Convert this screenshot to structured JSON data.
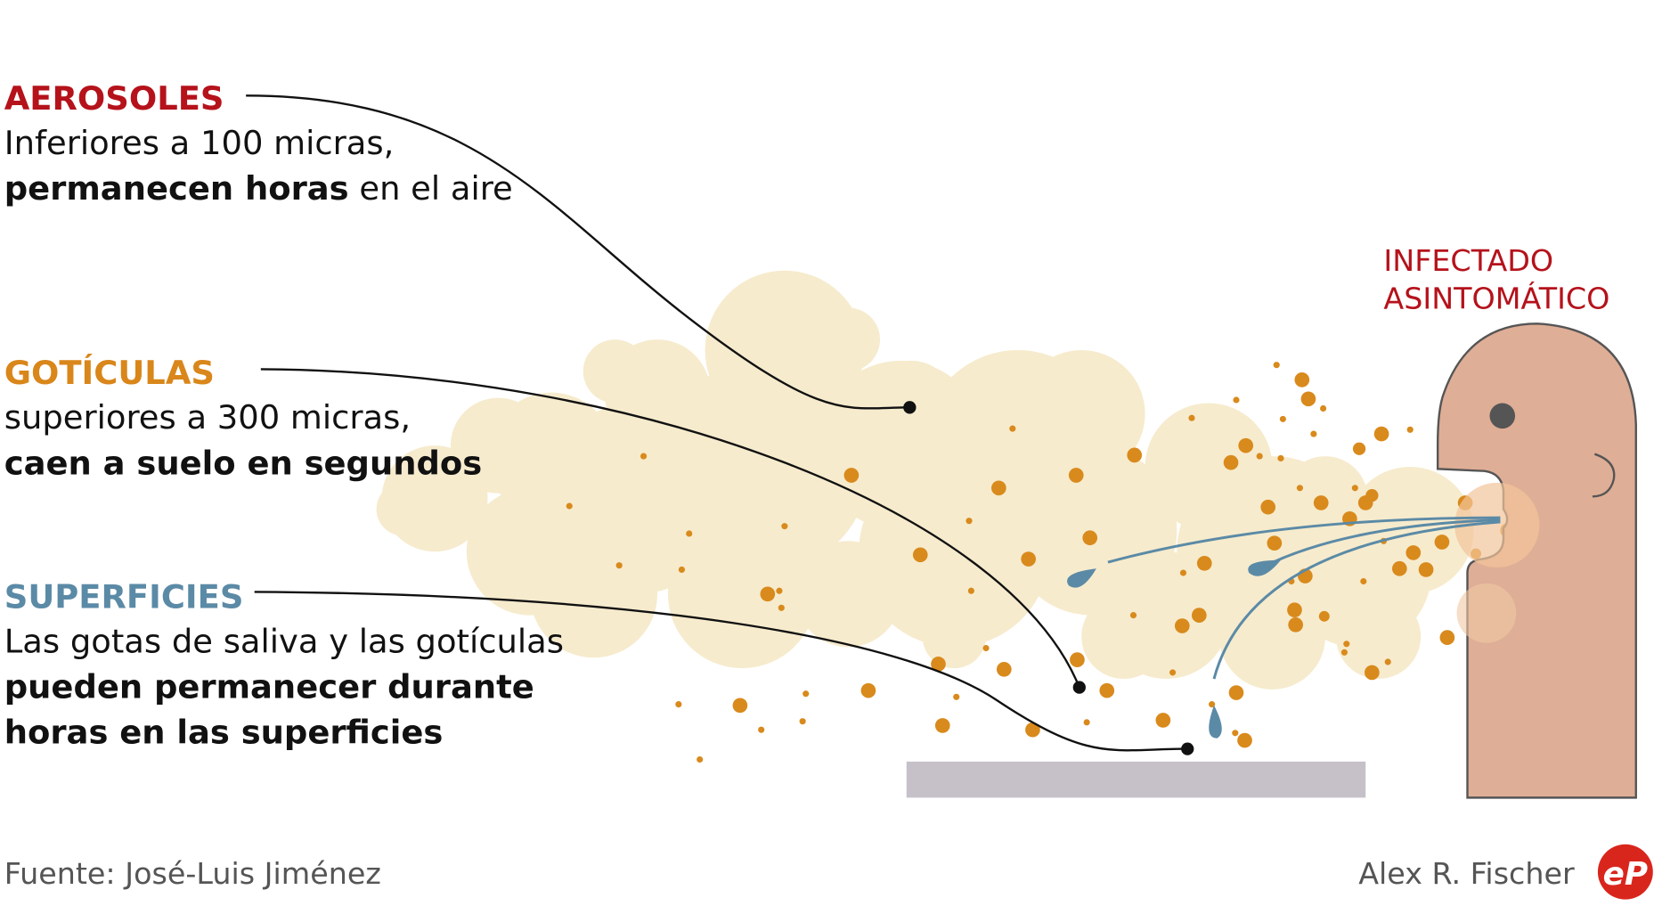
{
  "sections": [
    {
      "title": "AEROSOLES",
      "color": "#b5121b",
      "lines": [
        [
          {
            "text": "Inferiores a 100 micras,",
            "bold": false
          }
        ],
        [
          {
            "text": "permanecen horas",
            "bold": true
          },
          {
            "text": " en el aire",
            "bold": false
          }
        ]
      ]
    },
    {
      "title": "GOTÍCULAS",
      "color": "#d9861a",
      "lines": [
        [
          {
            "text": "superiores a 300 micras,",
            "bold": false
          }
        ],
        [
          {
            "text": "caen a suelo en segundos",
            "bold": true
          }
        ]
      ]
    },
    {
      "title": "SUPERFICIES",
      "color": "#5b8aa6",
      "lines": [
        [
          {
            "text": "Las gotas de saliva y las gotículas",
            "bold": false
          }
        ],
        [
          {
            "text": "pueden permanecer durante",
            "bold": true
          }
        ],
        [
          {
            "text": "horas en las superficies",
            "bold": true
          }
        ]
      ]
    }
  ],
  "person_label": [
    "INFECTADO",
    "ASINTOMÁTICO"
  ],
  "footer": {
    "source": "Fuente: José-Luis Jiménez",
    "author": "Alex R. Fischer",
    "logo": "eP"
  }
}
